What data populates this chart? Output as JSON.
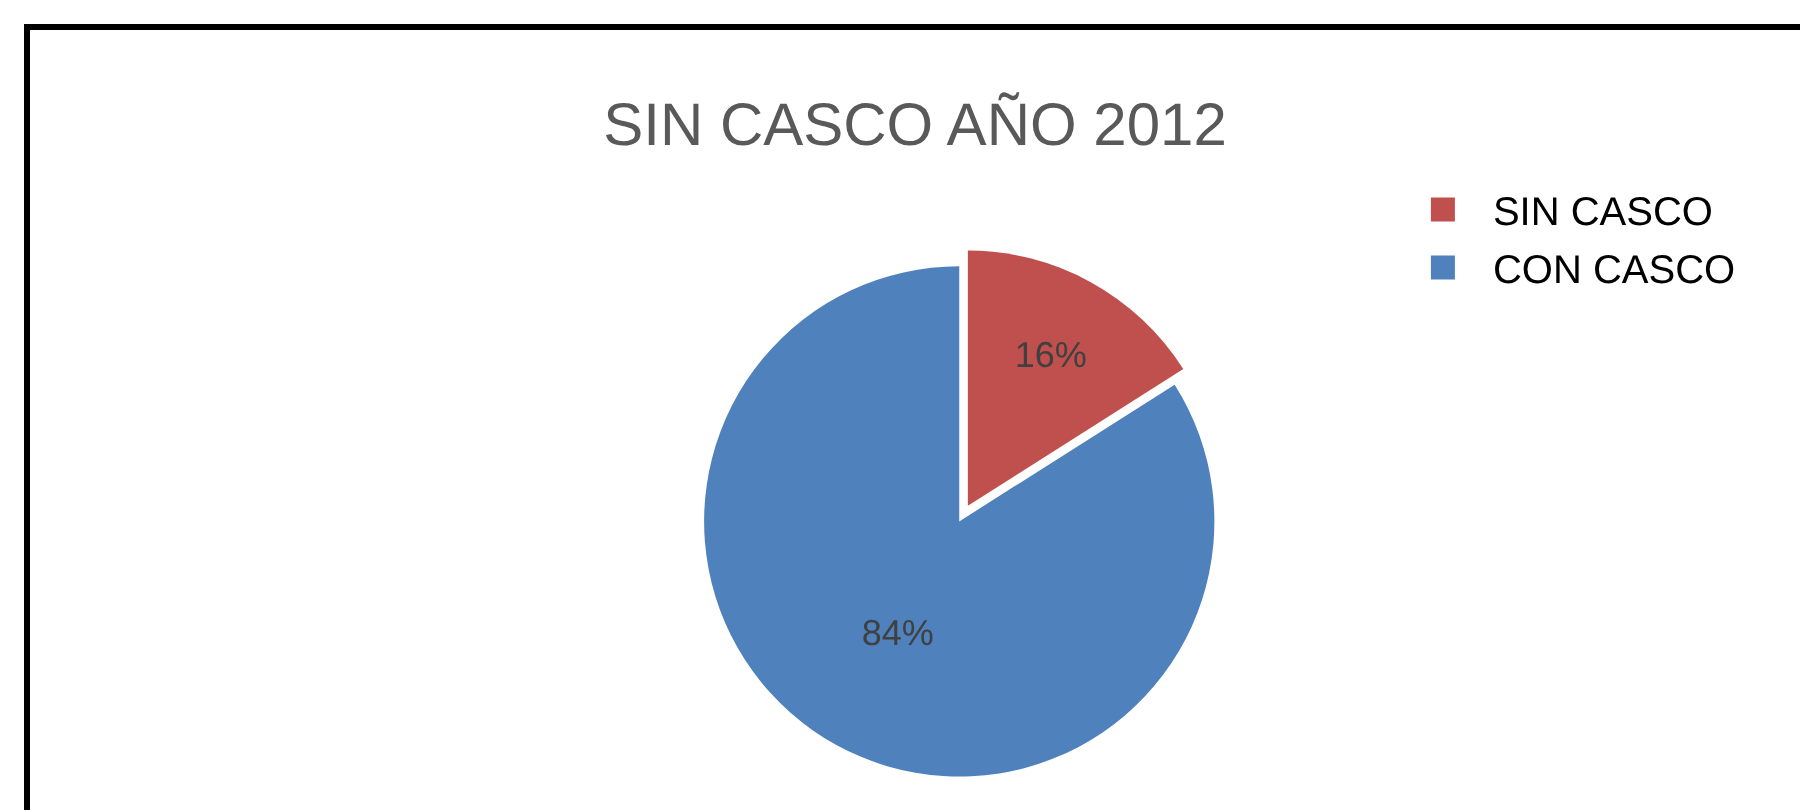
{
  "chart_data": {
    "type": "pie",
    "title": "SIN CASCO AÑO 2012",
    "categories": [
      "SIN CASCO",
      "CON CASCO"
    ],
    "values": [
      16,
      84
    ],
    "colors": [
      "#c0504d",
      "#4f81bd"
    ],
    "value_labels": [
      "16%",
      "84%"
    ],
    "legend": "right"
  }
}
